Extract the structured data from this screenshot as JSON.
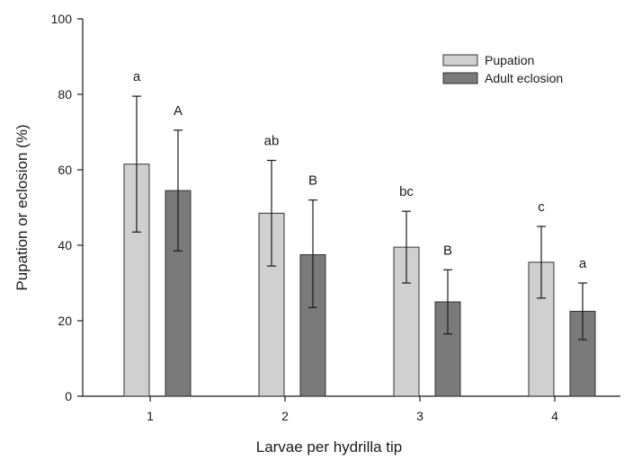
{
  "chart_data": {
    "type": "bar",
    "title": "",
    "xlabel": "Larvae per hydrilla tip",
    "ylabel": "Pupation or eclosion (%)",
    "categories": [
      "1",
      "2",
      "3",
      "4"
    ],
    "ylim": [
      0,
      100
    ],
    "yticks": [
      "0",
      "20",
      "40",
      "60",
      "80",
      "100"
    ],
    "grid": false,
    "legend_position": "top-right",
    "series": [
      {
        "name": "Pupation",
        "color": "#d0d0d0",
        "values": [
          61.5,
          48.5,
          39.5,
          35.5
        ],
        "error_low": [
          43.5,
          34.5,
          30,
          26
        ],
        "error_high": [
          79.5,
          62.5,
          49,
          45
        ],
        "labels": [
          "a",
          "ab",
          "bc",
          "c"
        ]
      },
      {
        "name": "Adult eclosion",
        "color": "#7a7a7a",
        "values": [
          54.5,
          37.5,
          25,
          22.5
        ],
        "error_low": [
          38.5,
          23.5,
          16.5,
          15
        ],
        "error_high": [
          70.5,
          52,
          33.5,
          30
        ],
        "labels": [
          "A",
          "B",
          "B",
          "a"
        ]
      }
    ]
  }
}
